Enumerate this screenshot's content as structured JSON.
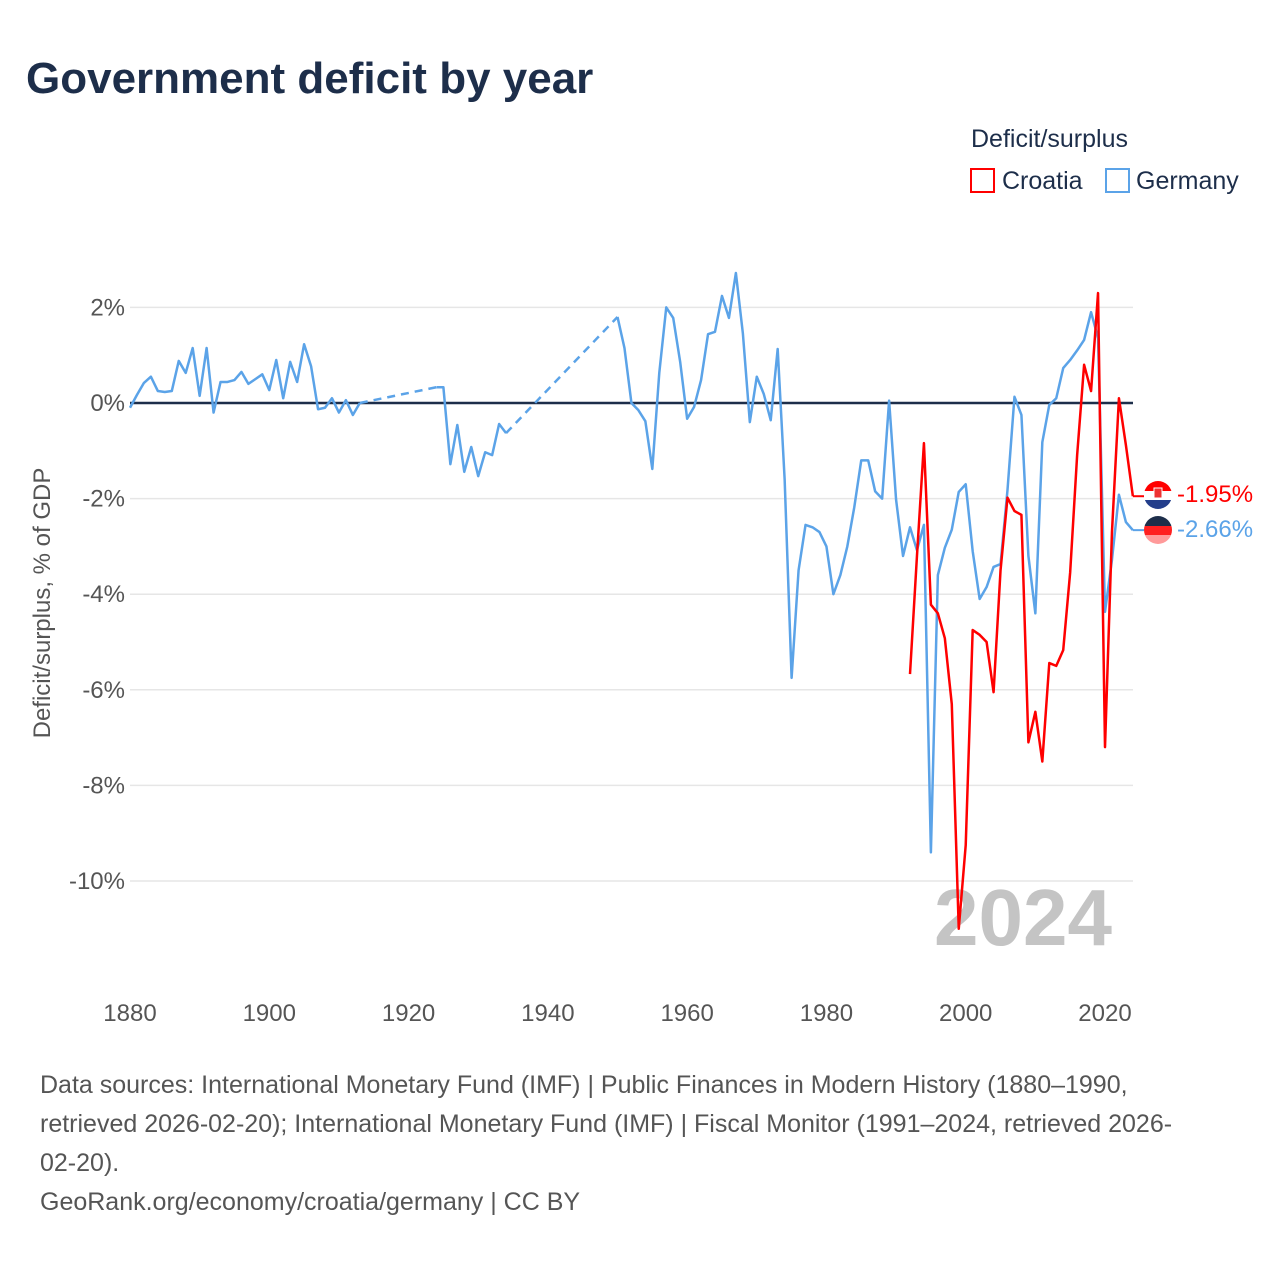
{
  "title": "Government deficit by year",
  "legend": {
    "title": "Deficit/surplus",
    "items": [
      {
        "name": "Croatia",
        "color": "#ff0000"
      },
      {
        "name": "Germany",
        "color": "#5ba3e8"
      }
    ]
  },
  "year_label": "2024",
  "footer": {
    "lines": [
      "Data sources: International Monetary Fund (IMF) | Public Finances in Modern History (1880–1990,",
      "retrieved 2026-02-20); International Monetary Fund (IMF) | Fiscal Monitor (1991–2024, retrieved 2026-",
      "02-20)."
    ],
    "attribution": "GeoRank.org/economy/croatia/germany | CC BY"
  },
  "chart_data": {
    "type": "line",
    "title": "Government deficit by year",
    "xlabel": "",
    "ylabel": "Deficit/surplus, % of GDP",
    "xlim": [
      1880,
      2024
    ],
    "ylim": [
      -11.5,
      3
    ],
    "xticks": [
      {
        "v": 1880,
        "label": "1880"
      },
      {
        "v": 1900,
        "label": "1900"
      },
      {
        "v": 1920,
        "label": "1920"
      },
      {
        "v": 1940,
        "label": "1940"
      },
      {
        "v": 1960,
        "label": "1960"
      },
      {
        "v": 1980,
        "label": "1980"
      },
      {
        "v": 2000,
        "label": "2000"
      },
      {
        "v": 2020,
        "label": "2020"
      }
    ],
    "yticks": [
      {
        "v": 2,
        "label": "2%"
      },
      {
        "v": 0,
        "label": "0%"
      },
      {
        "v": -2,
        "label": "-2%"
      },
      {
        "v": -4,
        "label": "-4%"
      },
      {
        "v": -6,
        "label": "-6%"
      },
      {
        "v": -8,
        "label": "-8%"
      },
      {
        "v": -10,
        "label": "-10%"
      }
    ],
    "grid": true,
    "legend_position": "top-right",
    "series": [
      {
        "name": "Germany",
        "color": "#5ba3e8",
        "end_label": "-2.66%",
        "points": [
          [
            1880,
            -0.1
          ],
          [
            1881,
            0.17
          ],
          [
            1882,
            0.42
          ],
          [
            1883,
            0.55
          ],
          [
            1884,
            0.25
          ],
          [
            1885,
            0.23
          ],
          [
            1886,
            0.25
          ],
          [
            1887,
            0.88
          ],
          [
            1888,
            0.63
          ],
          [
            1889,
            1.15
          ],
          [
            1890,
            0.15
          ],
          [
            1891,
            1.15
          ],
          [
            1892,
            -0.2
          ],
          [
            1893,
            0.44
          ],
          [
            1894,
            0.44
          ],
          [
            1895,
            0.48
          ],
          [
            1896,
            0.65
          ],
          [
            1897,
            0.4
          ],
          [
            1898,
            0.5
          ],
          [
            1899,
            0.6
          ],
          [
            1900,
            0.27
          ],
          [
            1901,
            0.9
          ],
          [
            1902,
            0.1
          ],
          [
            1903,
            0.86
          ],
          [
            1904,
            0.44
          ],
          [
            1905,
            1.23
          ],
          [
            1906,
            0.77
          ],
          [
            1907,
            -0.13
          ],
          [
            1908,
            -0.1
          ],
          [
            1909,
            0.1
          ],
          [
            1910,
            -0.2
          ],
          [
            1911,
            0.06
          ],
          [
            1912,
            -0.25
          ],
          [
            1913,
            0.0
          ],
          [
            1924,
            0.33
          ],
          [
            1925,
            0.33
          ],
          [
            1926,
            -1.28
          ],
          [
            1927,
            -0.46
          ],
          [
            1928,
            -1.44
          ],
          [
            1929,
            -0.92
          ],
          [
            1930,
            -1.53
          ],
          [
            1931,
            -1.03
          ],
          [
            1932,
            -1.09
          ],
          [
            1933,
            -0.44
          ],
          [
            1934,
            -0.63
          ],
          [
            1950,
            1.8
          ],
          [
            1951,
            1.15
          ],
          [
            1952,
            0.0
          ],
          [
            1953,
            -0.15
          ],
          [
            1954,
            -0.38
          ],
          [
            1955,
            -1.38
          ],
          [
            1956,
            0.63
          ],
          [
            1957,
            2.0
          ],
          [
            1958,
            1.78
          ],
          [
            1959,
            0.86
          ],
          [
            1960,
            -0.33
          ],
          [
            1961,
            -0.08
          ],
          [
            1962,
            0.48
          ],
          [
            1963,
            1.44
          ],
          [
            1964,
            1.49
          ],
          [
            1965,
            2.24
          ],
          [
            1966,
            1.78
          ],
          [
            1967,
            2.72
          ],
          [
            1968,
            1.46
          ],
          [
            1969,
            -0.4
          ],
          [
            1970,
            0.55
          ],
          [
            1971,
            0.19
          ],
          [
            1972,
            -0.36
          ],
          [
            1973,
            1.13
          ],
          [
            1974,
            -1.6
          ],
          [
            1975,
            -5.75
          ],
          [
            1976,
            -3.5
          ],
          [
            1977,
            -2.55
          ],
          [
            1978,
            -2.6
          ],
          [
            1979,
            -2.7
          ],
          [
            1980,
            -3.0
          ],
          [
            1981,
            -4.0
          ],
          [
            1982,
            -3.6
          ],
          [
            1983,
            -3.0
          ],
          [
            1984,
            -2.18
          ],
          [
            1985,
            -1.2
          ],
          [
            1986,
            -1.2
          ],
          [
            1987,
            -1.85
          ],
          [
            1988,
            -2.0
          ],
          [
            1989,
            0.05
          ],
          [
            1990,
            -2.02
          ],
          [
            1991,
            -3.2
          ],
          [
            1992,
            -2.6
          ],
          [
            1993,
            -3.08
          ],
          [
            1994,
            -2.55
          ],
          [
            1995,
            -9.4
          ],
          [
            1996,
            -3.6
          ],
          [
            1997,
            -3.03
          ],
          [
            1998,
            -2.65
          ],
          [
            1999,
            -1.86
          ],
          [
            2000,
            -1.7
          ],
          [
            2001,
            -3.1
          ],
          [
            2002,
            -4.1
          ],
          [
            2003,
            -3.85
          ],
          [
            2004,
            -3.43
          ],
          [
            2005,
            -3.37
          ],
          [
            2006,
            -1.82
          ],
          [
            2007,
            0.13
          ],
          [
            2008,
            -0.25
          ],
          [
            2009,
            -3.2
          ],
          [
            2010,
            -4.4
          ],
          [
            2011,
            -0.82
          ],
          [
            2012,
            -0.04
          ],
          [
            2013,
            0.1
          ],
          [
            2014,
            0.73
          ],
          [
            2015,
            0.9
          ],
          [
            2016,
            1.1
          ],
          [
            2017,
            1.32
          ],
          [
            2018,
            1.9
          ],
          [
            2019,
            1.36
          ],
          [
            2020,
            -4.37
          ],
          [
            2021,
            -3.28
          ],
          [
            2022,
            -1.92
          ],
          [
            2023,
            -2.49
          ],
          [
            2024,
            -2.66
          ]
        ]
      },
      {
        "name": "Croatia",
        "color": "#ff0000",
        "end_label": "-1.95%",
        "points": [
          [
            1992,
            -5.67
          ],
          [
            1993,
            -3.2
          ],
          [
            1994,
            -0.84
          ],
          [
            1995,
            -4.22
          ],
          [
            1996,
            -4.4
          ],
          [
            1997,
            -4.92
          ],
          [
            1998,
            -6.3
          ],
          [
            1999,
            -11.0
          ],
          [
            2000,
            -9.25
          ],
          [
            2001,
            -4.75
          ],
          [
            2002,
            -4.85
          ],
          [
            2003,
            -5.0
          ],
          [
            2004,
            -6.05
          ],
          [
            2005,
            -3.5
          ],
          [
            2006,
            -1.98
          ],
          [
            2007,
            -2.26
          ],
          [
            2008,
            -2.34
          ],
          [
            2009,
            -7.1
          ],
          [
            2010,
            -6.46
          ],
          [
            2011,
            -7.5
          ],
          [
            2012,
            -5.44
          ],
          [
            2013,
            -5.5
          ],
          [
            2014,
            -5.17
          ],
          [
            2015,
            -3.54
          ],
          [
            2016,
            -1.09
          ],
          [
            2017,
            0.8
          ],
          [
            2018,
            0.25
          ],
          [
            2019,
            2.3
          ],
          [
            2020,
            -7.2
          ],
          [
            2021,
            -2.7
          ],
          [
            2022,
            0.1
          ],
          [
            2023,
            -0.88
          ],
          [
            2024,
            -1.95
          ]
        ]
      }
    ]
  }
}
